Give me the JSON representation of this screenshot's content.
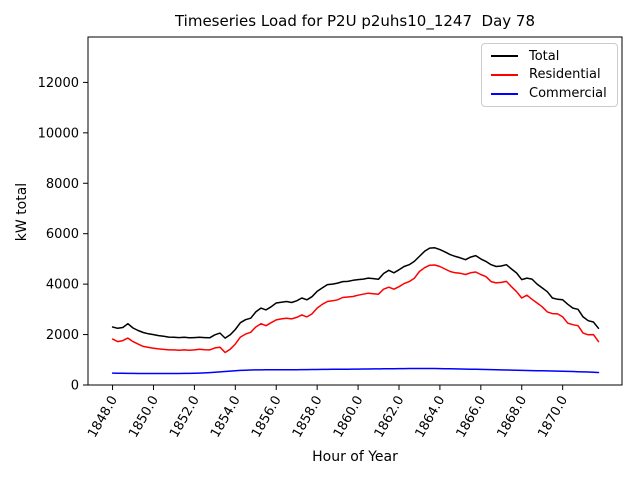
{
  "figure": {
    "title": "Timeseries Load for P2U p2uhs10_1247  Day 78",
    "xlabel": "Hour of Year",
    "ylabel": "kW total"
  },
  "chart_data": {
    "type": "line",
    "title": "Timeseries Load for P2U p2uhs10_1247  Day 78",
    "xlabel": "Hour of Year",
    "ylabel": "kW total",
    "grid": false,
    "legend_position": "upper right",
    "xlim": [
      1846.8,
      1872.9
    ],
    "ylim": [
      0,
      13800
    ],
    "x_ticks": [
      "1848.0",
      "1850.0",
      "1852.0",
      "1854.0",
      "1856.0",
      "1858.0",
      "1860.0",
      "1862.0",
      "1864.0",
      "1866.0",
      "1868.0",
      "1870.0"
    ],
    "y_ticks": [
      "0",
      "2000",
      "4000",
      "6000",
      "8000",
      "10000",
      "12000"
    ],
    "x_start": 1848.0,
    "x_step": 0.25,
    "series": [
      {
        "name": "Total",
        "color": "#000000",
        "values": [
          2300,
          2250,
          2280,
          2430,
          2260,
          2160,
          2080,
          2030,
          2000,
          1960,
          1930,
          1900,
          1890,
          1880,
          1890,
          1870,
          1880,
          1890,
          1880,
          1870,
          1990,
          2060,
          1860,
          1990,
          2200,
          2470,
          2590,
          2650,
          2900,
          3050,
          2980,
          3100,
          3250,
          3280,
          3310,
          3270,
          3340,
          3450,
          3380,
          3500,
          3710,
          3850,
          3980,
          4000,
          4040,
          4100,
          4110,
          4150,
          4180,
          4200,
          4240,
          4220,
          4190,
          4420,
          4550,
          4450,
          4570,
          4700,
          4770,
          4900,
          5100,
          5300,
          5430,
          5440,
          5370,
          5280,
          5170,
          5100,
          5040,
          4970,
          5070,
          5130,
          5000,
          4900,
          4770,
          4700,
          4720,
          4770,
          4600,
          4440,
          4180,
          4240,
          4200,
          4000,
          3850,
          3700,
          3450,
          3400,
          3380,
          3200,
          3050,
          3000,
          2700,
          2550,
          2500,
          2250
        ]
      },
      {
        "name": "Residential",
        "color": "#ff0000",
        "values": [
          1820,
          1720,
          1760,
          1860,
          1720,
          1620,
          1530,
          1490,
          1460,
          1430,
          1410,
          1390,
          1390,
          1380,
          1390,
          1380,
          1390,
          1420,
          1400,
          1390,
          1470,
          1500,
          1290,
          1420,
          1620,
          1900,
          2020,
          2090,
          2300,
          2430,
          2350,
          2470,
          2580,
          2620,
          2650,
          2620,
          2680,
          2780,
          2700,
          2820,
          3050,
          3200,
          3310,
          3340,
          3380,
          3470,
          3490,
          3510,
          3560,
          3600,
          3640,
          3620,
          3600,
          3800,
          3880,
          3800,
          3900,
          4020,
          4100,
          4230,
          4500,
          4650,
          4750,
          4760,
          4700,
          4600,
          4500,
          4450,
          4430,
          4380,
          4450,
          4480,
          4380,
          4300,
          4100,
          4050,
          4070,
          4110,
          3900,
          3700,
          3450,
          3560,
          3400,
          3250,
          3100,
          2900,
          2830,
          2820,
          2700,
          2450,
          2390,
          2350,
          2060,
          1990,
          2000,
          1720
        ]
      },
      {
        "name": "Commercial",
        "color": "#0000ff",
        "values": [
          470,
          466,
          463,
          461,
          460,
          458,
          457,
          456,
          455,
          455,
          455,
          455,
          456,
          457,
          459,
          461,
          465,
          472,
          481,
          492,
          505,
          520,
          536,
          552,
          566,
          578,
          588,
          594,
          598,
          600,
          601,
          602,
          603,
          604,
          605,
          606,
          607,
          609,
          611,
          613,
          616,
          618,
          620,
          622,
          624,
          626,
          628,
          629,
          631,
          633,
          635,
          637,
          639,
          641,
          644,
          646,
          649,
          652,
          654,
          655,
          656,
          656,
          655,
          653,
          650,
          647,
          643,
          639,
          635,
          631,
          627,
          623,
          618,
          614,
          609,
          604,
          600,
          595,
          590,
          585,
          580,
          575,
          570,
          566,
          562,
          558,
          554,
          550,
          545,
          540,
          534,
          528,
          521,
          514,
          506,
          497
        ]
      }
    ]
  }
}
